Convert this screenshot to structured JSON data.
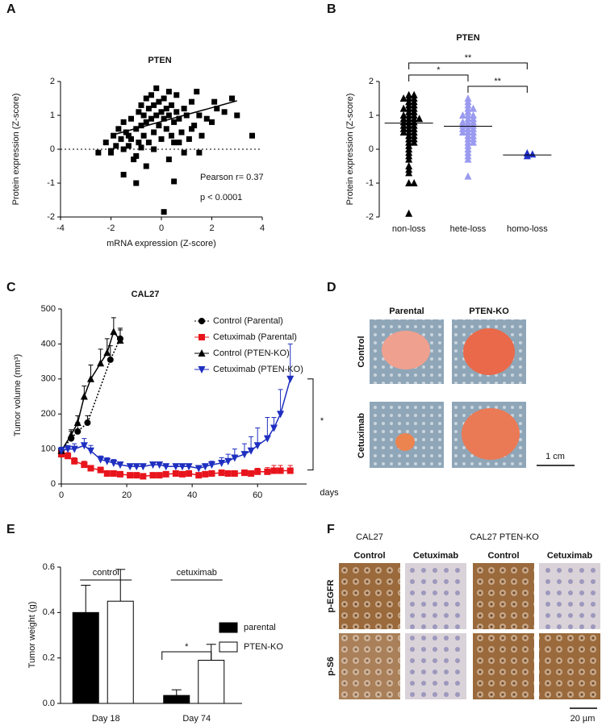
{
  "panel_labels": [
    "A",
    "B",
    "C",
    "D",
    "E",
    "F"
  ],
  "panel_D": {
    "columns": [
      "Parental",
      "PTEN-KO"
    ],
    "rows": [
      "Control",
      "Cetuximab"
    ],
    "scale_bar": "1 cm"
  },
  "panel_F": {
    "groups": [
      "CAL27",
      "CAL27 PTEN-KO"
    ],
    "columns": [
      "Control",
      "Cetuximab",
      "Control",
      "Cetuximab"
    ],
    "rows": [
      "p-EGFR",
      "p-S6"
    ],
    "scale_bar": "20 µm"
  },
  "chart_data": [
    {
      "type": "scatter",
      "title": "PTEN",
      "x_label": "mRNA expression (Z-score)",
      "y_label": "Protein expression (Z-score)",
      "xlim": [
        -4,
        4
      ],
      "xticks": [
        -4,
        -2,
        0,
        2,
        4
      ],
      "ylim": [
        -2,
        2
      ],
      "yticks": [
        -2,
        -1,
        0,
        1,
        2
      ],
      "color": "#000000",
      "x": [
        -2.5,
        -2.2,
        -2.0,
        -1.9,
        -1.8,
        -1.7,
        -1.6,
        -1.5,
        -1.5,
        -1.4,
        -1.3,
        -1.2,
        -1.2,
        -1.1,
        -1.0,
        -1.0,
        -0.9,
        -0.9,
        -0.8,
        -0.8,
        -0.7,
        -0.7,
        -0.6,
        -0.6,
        -0.5,
        -0.5,
        -0.4,
        -0.4,
        -0.3,
        -0.3,
        -0.2,
        -0.2,
        -0.1,
        -0.1,
        0.0,
        0.0,
        0.1,
        0.1,
        0.2,
        0.2,
        0.3,
        0.3,
        0.4,
        0.4,
        0.5,
        0.5,
        0.6,
        0.6,
        0.7,
        0.8,
        0.9,
        1.0,
        1.1,
        1.2,
        1.3,
        1.4,
        1.5,
        1.6,
        1.8,
        2.0,
        2.2,
        2.5,
        2.8,
        3.0,
        3.6,
        -1.5,
        -1.0,
        0.5,
        0.1,
        -0.6,
        0.3,
        -0.3,
        0.9,
        1.2,
        -2.0,
        -0.8,
        0.7,
        1.5,
        2.1,
        -1.3
      ],
      "values": [
        -0.1,
        0.2,
        -0.1,
        0.4,
        0.1,
        0.6,
        0.3,
        -0.75,
        0.8,
        0.5,
        0.1,
        0.9,
        0.3,
        -0.3,
        -1.0,
        0.6,
        1.1,
        0.2,
        0.7,
        1.3,
        0.4,
        1.0,
        0.8,
        1.5,
        0.2,
        1.2,
        0.9,
        1.6,
        0.5,
        1.3,
        1.0,
        1.8,
        0.7,
        1.4,
        0.3,
        1.1,
        0.9,
        1.5,
        0.6,
        1.2,
        1.0,
        1.7,
        0.4,
        1.3,
        -0.95,
        0.8,
        1.1,
        1.6,
        0.9,
        0.5,
        1.2,
        1.0,
        0.3,
        1.4,
        0.7,
        1.7,
        1.0,
        0.4,
        0.9,
        0.8,
        1.2,
        1.1,
        1.5,
        1.0,
        0.4,
        0.0,
        -0.2,
        0.2,
        -1.85,
        -0.5,
        -0.3,
        0.0,
        -0.1,
        0.6,
        -0.05,
        0.05,
        0.2,
        -0.1,
        1.4,
        0.4
      ],
      "fit": {
        "x": [
          -1.8,
          3.0
        ],
        "values": [
          0.45,
          1.43
        ]
      },
      "hline": 0,
      "annotations": [
        "Pearson  r= 0.37",
        "p < 0.0001"
      ]
    },
    {
      "type": "strip",
      "title": "PTEN",
      "y_label": "Protein expression (Z-score)",
      "ylim": [
        -2,
        2
      ],
      "yticks": [
        -2,
        -1,
        0,
        1,
        2
      ],
      "categories": [
        "non-loss",
        "hete-loss",
        "homo-loss"
      ],
      "colors": [
        "#000000",
        "#9a9af0",
        "#2030c8"
      ],
      "values": [
        [
          1.6,
          1.5,
          1.5,
          1.4,
          1.4,
          1.3,
          1.3,
          1.2,
          1.2,
          1.1,
          1.1,
          1.0,
          1.0,
          1.0,
          0.9,
          0.9,
          0.9,
          0.8,
          0.8,
          0.8,
          0.7,
          0.7,
          0.7,
          0.6,
          0.6,
          0.6,
          0.5,
          0.5,
          0.5,
          0.4,
          0.4,
          0.3,
          0.3,
          0.2,
          0.2,
          0.1,
          0.0,
          -0.1,
          -0.2,
          -0.3,
          -0.5,
          -0.6,
          -0.7,
          -1.0,
          -1.0,
          -1.9,
          1.6,
          1.5,
          1.2,
          0.9
        ],
        [
          1.5,
          1.4,
          1.3,
          1.2,
          1.2,
          1.1,
          1.0,
          1.0,
          0.9,
          0.9,
          0.8,
          0.8,
          0.8,
          0.7,
          0.7,
          0.7,
          0.6,
          0.6,
          0.6,
          0.5,
          0.5,
          0.4,
          0.4,
          0.3,
          0.3,
          0.2,
          0.2,
          0.1,
          0.0,
          -0.1,
          -0.2,
          -0.3,
          -0.8,
          1.0,
          0.5
        ],
        [
          -0.12,
          -0.2,
          -0.15
        ]
      ],
      "means": [
        0.77,
        0.68,
        -0.17
      ],
      "significance": [
        "**",
        "*",
        "**"
      ]
    },
    {
      "type": "line",
      "title": "CAL27",
      "x_label": "days",
      "y_label": "Tumor volume (mm³)",
      "xlim": [
        0,
        75
      ],
      "xticks": [
        0,
        20,
        40,
        60
      ],
      "ylim": [
        0,
        500
      ],
      "yticks": [
        0,
        100,
        200,
        300,
        400,
        500
      ],
      "series": [
        {
          "name": "Control (Parental)",
          "color": "#000000",
          "marker": "circle",
          "line_style": "dotted",
          "x": [
            0,
            3,
            5,
            8,
            15,
            18
          ],
          "values": [
            95,
            130,
            150,
            175,
            355,
            415
          ],
          "errors": [
            8,
            20,
            25,
            20,
            40,
            30
          ]
        },
        {
          "name": "Cetuximab (Parental)",
          "color": "#e8141c",
          "marker": "square",
          "line_style": "solid",
          "x": [
            0,
            2,
            4,
            7,
            9,
            12,
            14,
            16,
            18,
            21,
            23,
            25,
            28,
            30,
            32,
            35,
            37,
            39,
            42,
            44,
            46,
            49,
            51,
            53,
            56,
            58,
            60,
            63,
            65,
            67,
            70
          ],
          "values": [
            85,
            80,
            65,
            55,
            45,
            40,
            30,
            30,
            28,
            25,
            25,
            22,
            25,
            25,
            28,
            30,
            28,
            30,
            25,
            28,
            30,
            32,
            30,
            30,
            32,
            30,
            35,
            35,
            38,
            38,
            38
          ],
          "errors": [
            10,
            10,
            10,
            10,
            8,
            8,
            8,
            8,
            6,
            6,
            6,
            6,
            6,
            6,
            6,
            6,
            6,
            6,
            6,
            6,
            8,
            8,
            8,
            8,
            8,
            8,
            10,
            12,
            15,
            15,
            15
          ]
        },
        {
          "name": "Control (PTEN-KO)",
          "color": "#000000",
          "marker": "triangle",
          "line_style": "solid",
          "x": [
            0,
            3,
            5,
            7,
            9,
            12,
            14,
            16,
            18
          ],
          "values": [
            95,
            140,
            175,
            250,
            300,
            345,
            375,
            435,
            410
          ],
          "errors": [
            8,
            15,
            20,
            30,
            40,
            40,
            40,
            40,
            30
          ]
        },
        {
          "name": "Cetuximab (PTEN-KO)",
          "color": "#1f2fc0",
          "marker": "triangle-down",
          "line_style": "solid",
          "x": [
            0,
            2,
            4,
            7,
            9,
            12,
            14,
            16,
            18,
            21,
            23,
            25,
            28,
            30,
            32,
            35,
            37,
            39,
            42,
            44,
            46,
            49,
            51,
            53,
            56,
            58,
            60,
            63,
            65,
            67,
            70
          ],
          "values": [
            95,
            100,
            100,
            110,
            95,
            70,
            65,
            60,
            55,
            50,
            50,
            50,
            55,
            55,
            50,
            50,
            50,
            50,
            45,
            50,
            55,
            60,
            65,
            75,
            85,
            95,
            110,
            130,
            160,
            200,
            300
          ],
          "errors": [
            10,
            10,
            15,
            20,
            15,
            10,
            10,
            10,
            8,
            8,
            8,
            8,
            8,
            8,
            8,
            8,
            8,
            8,
            8,
            8,
            10,
            15,
            20,
            25,
            30,
            40,
            50,
            60,
            30,
            70,
            100
          ]
        }
      ],
      "significance": [
        "*"
      ]
    },
    {
      "type": "bar",
      "y_label": "Tumor weight (g)",
      "ylim": [
        0,
        0.6
      ],
      "yticks": [
        {
          "value": 0,
          "label": "0.0"
        },
        0.2,
        0.4,
        0.6
      ],
      "categories": [
        "Day 18",
        "Day 74"
      ],
      "group_labels": [
        "control",
        "cetuximab"
      ],
      "series": [
        {
          "name": "parental",
          "color": "#000000",
          "values": [
            0.4,
            0.035
          ],
          "errors": [
            0.12,
            0.025
          ]
        },
        {
          "name": "PTEN-KO",
          "color": "#ffffff",
          "values": [
            0.45,
            0.19
          ],
          "errors": [
            0.14,
            0.07
          ]
        }
      ],
      "significance": [
        "*"
      ]
    }
  ]
}
